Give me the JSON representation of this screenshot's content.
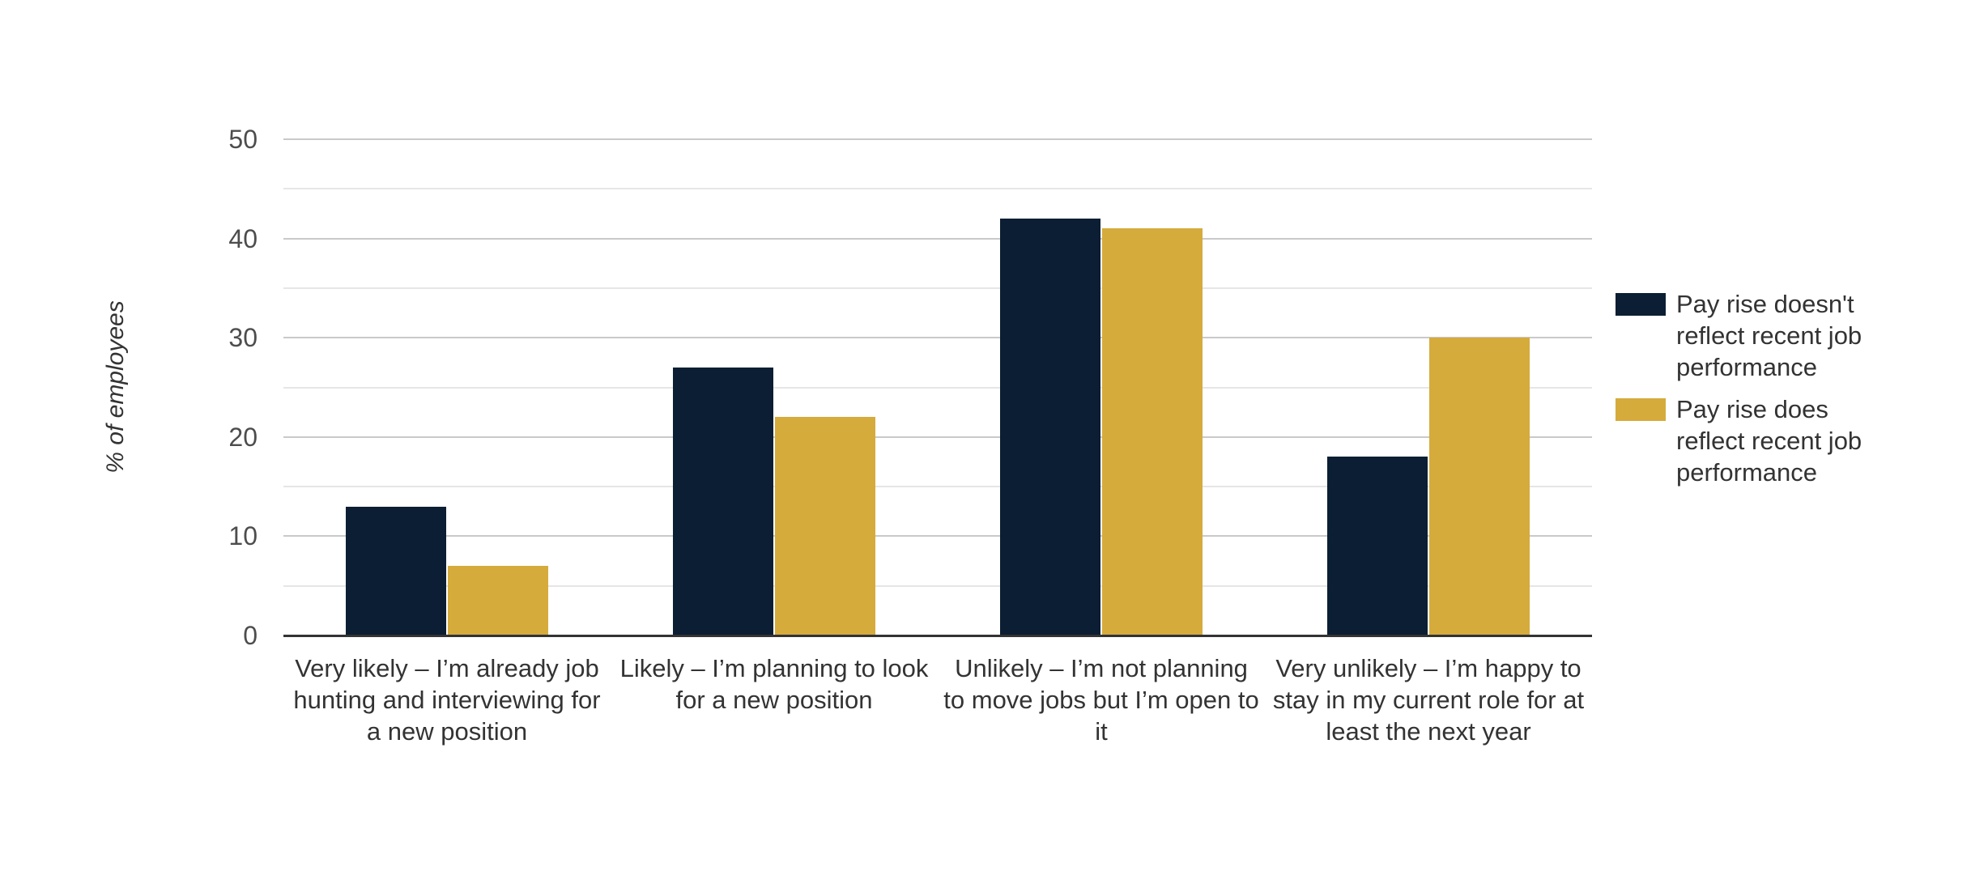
{
  "chart_data": {
    "type": "bar",
    "title": "",
    "xlabel": "",
    "ylabel": "% of employees",
    "ylim": [
      0,
      50
    ],
    "yticks": [
      0,
      10,
      20,
      30,
      40,
      50
    ],
    "minor_gridlines": [
      5,
      15,
      25,
      35,
      45
    ],
    "grid": "horizontal",
    "legend_position": "right",
    "categories": [
      "Very likely – I’m already job hunting and interviewing for a new position",
      "Likely – I’m planning to look for a new position",
      "Unlikely – I’m not planning to move jobs but I’m open to it",
      "Very unlikely – I’m happy to stay in my current role for at least the next year"
    ],
    "categories_lines": [
      [
        "Very likely – I’m already job",
        "hunting and interviewing for",
        "a new position"
      ],
      [
        "Likely – I’m planning to look",
        "for a new position"
      ],
      [
        "Unlikely – I’m not planning",
        "to move jobs but I’m open to",
        "it"
      ],
      [
        "Very unlikely – I’m happy to",
        "stay in my current role for at",
        "least the next year"
      ]
    ],
    "series": [
      {
        "name": "Pay rise doesn't reflect recent job performance",
        "name_lines": [
          "Pay rise doesn't",
          "reflect recent job",
          "performance"
        ],
        "color": "#0B1E33",
        "values": [
          13,
          27,
          42,
          18
        ]
      },
      {
        "name": "Pay rise does reflect recent job performance",
        "name_lines": [
          "Pay rise does",
          "reflect recent job",
          "performance"
        ],
        "color": "#D5AB3C",
        "values": [
          7,
          22,
          41,
          30
        ]
      }
    ],
    "colors": {
      "major_gridline": "#c9c9c9",
      "minor_gridline": "#e6e6e6",
      "axis_line": "#333333",
      "tick_label": "#4d4d4d",
      "text": "#333333",
      "background": "#ffffff"
    }
  }
}
